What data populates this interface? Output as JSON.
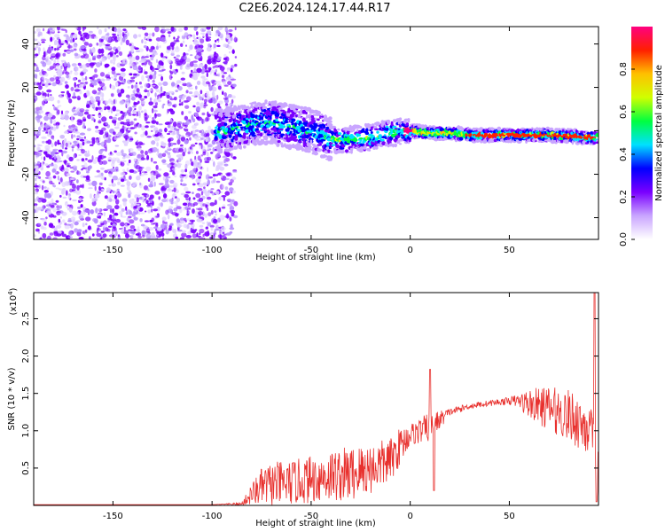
{
  "title": "C2E6.2024.124.17.44.R17",
  "chart_data": [
    {
      "type": "heatmap",
      "xlabel": "Height of straight line (km)",
      "ylabel": "Frequency (Hz)",
      "xlim": [
        -190,
        95
      ],
      "ylim": [
        -50,
        48
      ],
      "xticks": [
        -150,
        -100,
        -50,
        0,
        50
      ],
      "yticks": [
        -40,
        -20,
        0,
        20,
        40
      ],
      "grid": false,
      "colorbar": {
        "label": "Normalized spectral amplitude",
        "range": [
          0,
          1
        ],
        "ticks": [
          0.0,
          0.2,
          0.4,
          0.6,
          0.8
        ],
        "colormap": [
          "#ffffff",
          "#c9a5ff",
          "#7a00ff",
          "#0000ff",
          "#00e0ff",
          "#00ff40",
          "#d0ff00",
          "#ffc000",
          "#ff2000",
          "#ff0080"
        ]
      },
      "ridge": {
        "x": [
          -95,
          -80,
          -70,
          -60,
          -50,
          -40,
          -30,
          -20,
          -10,
          0,
          10,
          20,
          30,
          50,
          70,
          90
        ],
        "frequency": [
          0,
          3,
          4,
          2,
          0,
          -4,
          -4,
          -3,
          -1,
          0,
          -1,
          -1,
          -2,
          -2,
          -2,
          -3
        ]
      }
    },
    {
      "type": "line",
      "xlabel": "Height of straight line (km)",
      "ylabel": "SNR (10 * v/v)",
      "yscale_label": "(x10",
      "yscale_exp": "4",
      "yscale_close": ")",
      "xlim": [
        -190,
        95
      ],
      "ylim": [
        0,
        2.85
      ],
      "xticks": [
        -150,
        -100,
        -50,
        0,
        50
      ],
      "yticks": [
        0.5,
        1.0,
        1.5,
        2.0,
        2.5
      ],
      "ytick_labels": [
        "0.5",
        "1.0",
        "1.5",
        "2.0",
        "2.5"
      ],
      "grid": false,
      "color": "#e8312e",
      "envelope": {
        "x": [
          -190,
          -100,
          -85,
          -80,
          -75,
          -70,
          -60,
          -50,
          -40,
          -30,
          -20,
          -10,
          -5,
          0,
          10,
          20,
          30,
          40,
          50,
          55,
          60,
          70,
          80,
          90,
          95
        ],
        "baseline": [
          0.01,
          0.01,
          0.02,
          0.15,
          0.25,
          0.28,
          0.3,
          0.35,
          0.4,
          0.42,
          0.5,
          0.6,
          0.8,
          0.95,
          1.05,
          1.25,
          1.33,
          1.37,
          1.4,
          1.4,
          1.36,
          1.3,
          1.2,
          1.05,
          0.5
        ],
        "spread": [
          0.0,
          0.0,
          0.02,
          0.15,
          0.25,
          0.3,
          0.3,
          0.32,
          0.35,
          0.38,
          0.35,
          0.3,
          0.25,
          0.15,
          0.2,
          0.05,
          0.04,
          0.04,
          0.05,
          0.1,
          0.2,
          0.3,
          0.35,
          0.4,
          0.4
        ]
      },
      "peaks": [
        {
          "x": 10,
          "y": 1.82
        },
        {
          "x": 12,
          "y": 0.2
        },
        {
          "x": 93,
          "y": 2.85
        },
        {
          "x": 94,
          "y": 0.05
        }
      ]
    }
  ]
}
